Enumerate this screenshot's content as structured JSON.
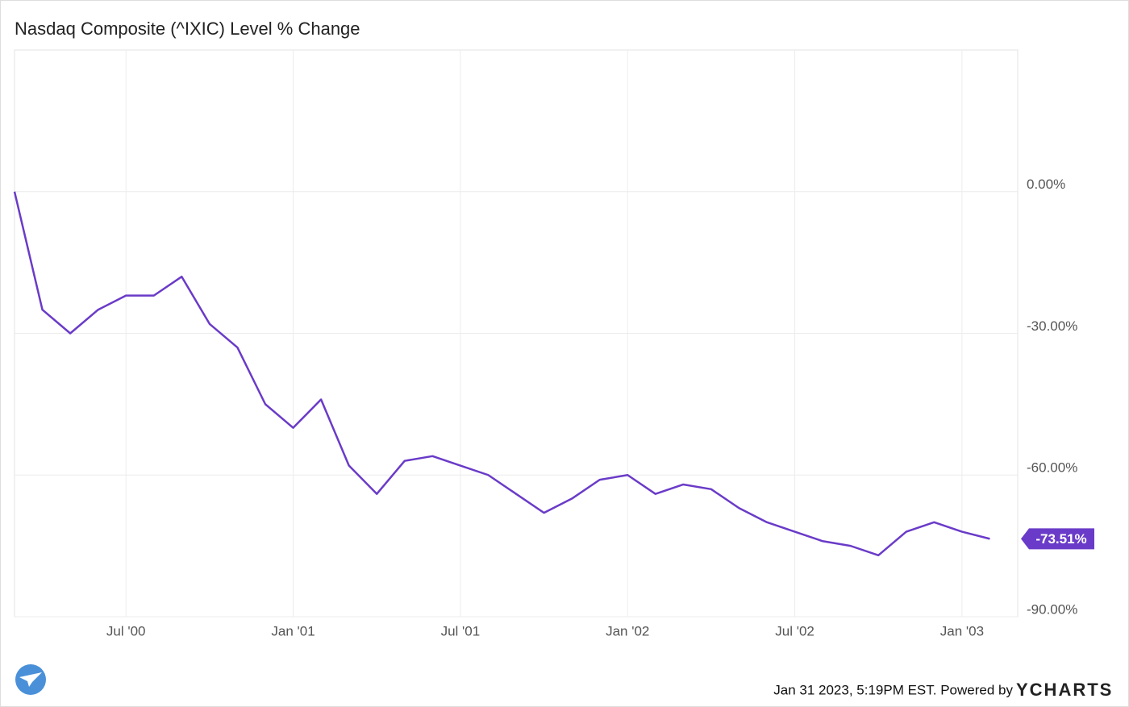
{
  "chart_data": {
    "type": "line",
    "title": "Nasdaq Composite (^IXIC) Level % Change",
    "x": [
      "2000-03",
      "2000-04",
      "2000-05",
      "2000-06",
      "2000-07",
      "2000-08",
      "2000-09",
      "2000-10",
      "2000-11",
      "2000-12",
      "2001-01",
      "2001-02",
      "2001-03",
      "2001-04",
      "2001-05",
      "2001-06",
      "2001-07",
      "2001-08",
      "2001-09",
      "2001-10",
      "2001-11",
      "2001-12",
      "2002-01",
      "2002-02",
      "2002-03",
      "2002-04",
      "2002-05",
      "2002-06",
      "2002-07",
      "2002-08",
      "2002-09",
      "2002-10",
      "2002-11",
      "2002-12",
      "2003-01",
      "2003-02"
    ],
    "series": [
      {
        "color": "#6a3bc8",
        "values": [
          0,
          -25,
          -30,
          -25,
          -22,
          -22,
          -18,
          -28,
          -33,
          -45,
          -50,
          -44,
          -58,
          -64,
          -57,
          -56,
          -58,
          -60,
          -64,
          -68,
          -65,
          -61,
          -60,
          -64,
          -62,
          -63,
          -67,
          -70,
          -72,
          -74,
          -75,
          -77,
          -72,
          -70,
          -72,
          -73.51
        ],
        "value_labels": [
          null,
          null,
          null,
          null,
          null,
          null,
          null,
          null,
          null,
          null,
          null,
          null,
          null,
          null,
          null,
          null,
          null,
          null,
          null,
          null,
          null,
          null,
          null,
          null,
          null,
          null,
          null,
          null,
          null,
          null,
          null,
          null,
          null,
          null,
          null,
          "-73.51%"
        ]
      }
    ],
    "xlim": [
      "2000-03",
      "2003-03"
    ],
    "xticks": [
      {
        "value": "2000-07",
        "label": "Jul '00"
      },
      {
        "value": "2001-01",
        "label": "Jan '01"
      },
      {
        "value": "2001-07",
        "label": "Jul '01"
      },
      {
        "value": "2002-01",
        "label": "Jan '02"
      },
      {
        "value": "2002-07",
        "label": "Jul '02"
      },
      {
        "value": "2003-01",
        "label": "Jan '03"
      }
    ],
    "ylim": [
      -90,
      30
    ],
    "yticks": [
      {
        "value": 0,
        "label": "0.00%"
      },
      {
        "value": -30,
        "label": "-30.00%"
      },
      {
        "value": -60,
        "label": "-60.00%"
      },
      {
        "value": -90,
        "label": "-90.00%"
      }
    ],
    "grid": true
  },
  "credit": "Jan 31 2023, 5:19PM EST. Powered by",
  "brand": "YCHARTS"
}
